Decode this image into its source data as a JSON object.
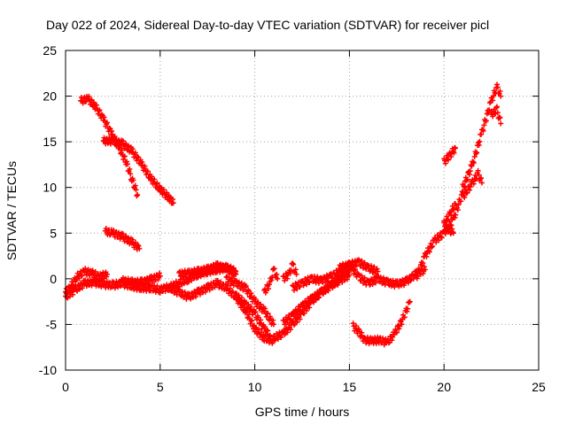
{
  "chart_data": {
    "type": "scatter",
    "title": "Day 022 of 2024, Sidereal Day-to-day VTEC variation (SDTVAR) for receiver picl",
    "xlabel": "GPS time / hours",
    "ylabel": "SDTVAR / TECUs",
    "xlim": [
      0,
      25
    ],
    "ylim": [
      -10,
      25
    ],
    "xticks": [
      0,
      5,
      10,
      15,
      20,
      25
    ],
    "yticks": [
      -10,
      -5,
      0,
      5,
      10,
      15,
      20,
      25
    ],
    "grid": true,
    "marker": "+",
    "color": "#ff0000",
    "series": [
      {
        "x": [
          0.8,
          1.2,
          1.6,
          2.0,
          2.4,
          2.8,
          3.2,
          3.5,
          3.8
        ],
        "y": [
          19.5,
          19.7,
          18.8,
          17.5,
          16.0,
          14.5,
          12.8,
          11.0,
          9.2
        ]
      },
      {
        "x": [
          2.0,
          2.5,
          3.0,
          3.5,
          4.0,
          4.5,
          5.0,
          5.5,
          5.7
        ],
        "y": [
          15.1,
          15.1,
          14.8,
          14.0,
          12.6,
          11.0,
          9.8,
          8.8,
          8.3
        ]
      },
      {
        "x": [
          2.1,
          2.5,
          3.0,
          3.5,
          3.9
        ],
        "y": [
          5.2,
          5.0,
          4.6,
          4.0,
          3.3
        ]
      },
      {
        "x": [
          0.0,
          0.3,
          0.6,
          1.0,
          1.4,
          1.8,
          2.2
        ],
        "y": [
          -1.5,
          -0.8,
          0.2,
          0.8,
          0.6,
          0.2,
          0.5
        ]
      },
      {
        "x": [
          0.0,
          0.5,
          1.0,
          1.5,
          2.0,
          2.5,
          3.0,
          3.5,
          4.0,
          4.5,
          5.0,
          5.5,
          6.0,
          6.5,
          7.0,
          7.5,
          8.0,
          8.5,
          9.0
        ],
        "y": [
          -2.0,
          -1.2,
          -0.5,
          -0.4,
          -0.6,
          -0.7,
          -0.5,
          -0.8,
          -1.0,
          -1.0,
          -1.2,
          -0.9,
          -0.5,
          0.0,
          0.5,
          0.8,
          1.0,
          1.2,
          0.8
        ]
      },
      {
        "x": [
          3.0,
          3.5,
          4.0,
          4.5,
          5.0
        ],
        "y": [
          -0.2,
          -0.4,
          -0.4,
          -0.1,
          0.3
        ]
      },
      {
        "x": [
          5.5,
          6.0,
          6.5,
          7.0,
          7.5,
          8.0,
          8.5,
          9.0,
          9.5,
          10.0,
          10.5,
          11.0
        ],
        "y": [
          -1.0,
          -1.5,
          -2.0,
          -1.5,
          -1.0,
          -0.5,
          -1.0,
          -2.0,
          -3.5,
          -5.5,
          -6.5,
          -6.8
        ]
      },
      {
        "x": [
          6.0,
          6.5,
          7.0,
          7.5,
          8.0,
          8.5,
          9.0
        ],
        "y": [
          0.5,
          0.6,
          0.8,
          1.0,
          1.4,
          1.2,
          0.5
        ]
      },
      {
        "x": [
          8.5,
          9.0,
          9.5,
          10.0,
          10.5,
          11.0
        ],
        "y": [
          0.0,
          -0.5,
          -1.0,
          -2.5,
          -3.5,
          -5.0
        ]
      },
      {
        "x": [
          9.0,
          9.5,
          10.0,
          10.5,
          10.8
        ],
        "y": [
          -1.8,
          -2.8,
          -3.8,
          -5.5,
          -6.2
        ]
      },
      {
        "x": [
          10.5,
          10.8,
          11.0,
          11.2
        ],
        "y": [
          -1.5,
          -0.5,
          1.0,
          0.0
        ]
      },
      {
        "x": [
          11.0,
          11.5,
          12.0,
          12.5,
          13.0,
          13.5,
          14.0,
          14.5,
          15.0
        ],
        "y": [
          -6.5,
          -6.0,
          -5.0,
          -3.8,
          -2.5,
          -1.5,
          -0.8,
          0.0,
          1.0
        ]
      },
      {
        "x": [
          11.5,
          12.0,
          12.5,
          13.0,
          13.5,
          14.0,
          14.5,
          15.0
        ],
        "y": [
          -4.8,
          -4.0,
          -3.0,
          -2.2,
          -1.5,
          -0.8,
          -0.2,
          0.4
        ]
      },
      {
        "x": [
          11.5,
          11.8,
          12.0,
          12.2
        ],
        "y": [
          0.0,
          0.5,
          1.5,
          0.5
        ]
      },
      {
        "x": [
          12.0,
          12.5,
          13.0,
          13.5,
          14.0,
          14.5,
          15.0
        ],
        "y": [
          -1.0,
          -0.5,
          0.0,
          -0.2,
          0.2,
          0.8,
          1.5
        ]
      },
      {
        "x": [
          14.5,
          15.0,
          15.5,
          16.0,
          16.5,
          17.0,
          17.5,
          18.0,
          18.5,
          19.0
        ],
        "y": [
          1.2,
          1.5,
          0.2,
          -0.5,
          0.0,
          -0.4,
          -0.6,
          -0.3,
          0.5,
          1.0
        ]
      },
      {
        "x": [
          15.0,
          15.5,
          16.0,
          16.5
        ],
        "y": [
          1.5,
          1.8,
          1.2,
          0.8
        ]
      },
      {
        "x": [
          15.2,
          15.5,
          15.8,
          16.2,
          16.6,
          17.0,
          17.4,
          17.8,
          18.2
        ],
        "y": [
          -5.2,
          -5.8,
          -6.7,
          -6.8,
          -6.7,
          -7.0,
          -6.0,
          -4.5,
          -2.5
        ]
      },
      {
        "x": [
          18.5,
          19.0,
          19.5,
          20.0,
          20.5,
          21.0
        ],
        "y": [
          0.0,
          2.5,
          4.2,
          5.0,
          6.5,
          9.5
        ]
      },
      {
        "x": [
          20.0,
          20.3,
          20.6
        ],
        "y": [
          12.8,
          13.5,
          14.3
        ]
      },
      {
        "x": [
          20.0,
          20.3,
          20.6
        ],
        "y": [
          6.0,
          7.0,
          8.2
        ]
      },
      {
        "x": [
          20.0,
          20.5
        ],
        "y": [
          5.8,
          5.0
        ]
      },
      {
        "x": [
          21.0,
          21.5,
          22.0,
          22.5,
          22.8,
          23.0
        ],
        "y": [
          10.0,
          12.5,
          16.0,
          19.5,
          21.0,
          20.0
        ]
      },
      {
        "x": [
          21.0,
          21.5,
          21.8,
          22.0
        ],
        "y": [
          9.0,
          10.5,
          11.5,
          10.5
        ]
      },
      {
        "x": [
          22.5,
          22.8,
          23.0
        ],
        "y": [
          18.0,
          18.5,
          17.0
        ]
      }
    ]
  }
}
